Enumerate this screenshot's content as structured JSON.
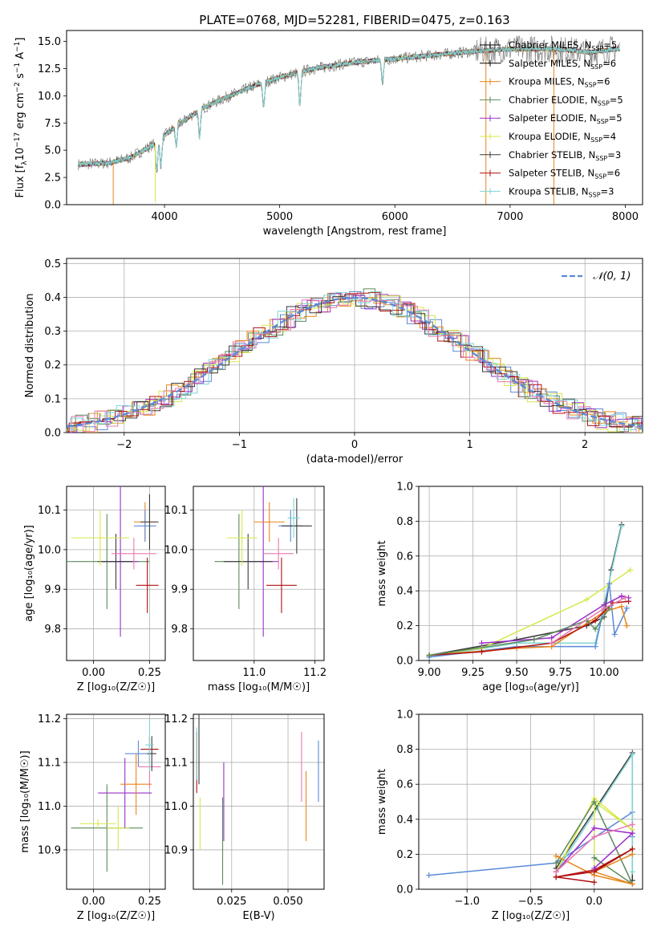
{
  "figure": {
    "top_title": "PLATE=0768, MJD=52281, FIBERID=0475, z=0.163"
  },
  "chart_data": [
    {
      "id": "spectrum",
      "type": "line",
      "title": "PLATE=0768, MJD=52281, FIBERID=0475, z=0.163",
      "xlabel": "wavelength [Angstrom, rest frame]",
      "ylabel_parts": {
        "pre": "Flux [f",
        "sub": "λ",
        "mid": "10",
        "sup1": "−17",
        "post1": " erg cm",
        "sup2": "−2",
        "post2": " s",
        "sup3": "−1",
        "post3": " A",
        "sup4": "−1",
        "post4": "]"
      },
      "xlim": [
        3150,
        8150
      ],
      "ylim": [
        0,
        16
      ],
      "xticks": [
        "4000",
        "5000",
        "6000",
        "7000",
        "8000"
      ],
      "xtick_values": [
        4000,
        5000,
        6000,
        7000,
        8000
      ],
      "yticks": [
        "0.0",
        "2.5",
        "5.0",
        "7.5",
        "10.0",
        "12.5",
        "15.0"
      ],
      "ytick_values": [
        0,
        2.5,
        5,
        7.5,
        10,
        12.5,
        15
      ],
      "continuum_points": [
        [
          3250,
          3.7
        ],
        [
          3500,
          3.8
        ],
        [
          3700,
          4.3
        ],
        [
          3900,
          5.5
        ],
        [
          4100,
          7.2
        ],
        [
          4300,
          8.7
        ],
        [
          4500,
          9.7
        ],
        [
          4800,
          11.0
        ],
        [
          5000,
          11.7
        ],
        [
          5300,
          12.5
        ],
        [
          5600,
          13.0
        ],
        [
          6000,
          13.4
        ],
        [
          6300,
          13.7
        ],
        [
          6700,
          14.1
        ],
        [
          7000,
          14.3
        ],
        [
          7400,
          14.3
        ],
        [
          7700,
          14.0
        ],
        [
          7900,
          14.3
        ]
      ],
      "absorption_lines": [
        [
          3934,
          0.45
        ],
        [
          3969,
          0.4
        ],
        [
          4102,
          0.25
        ],
        [
          4304,
          0.3
        ],
        [
          4861,
          0.2
        ],
        [
          5175,
          0.25
        ],
        [
          5893,
          0.15
        ]
      ],
      "spikes": [
        [
          3555,
          0.0
        ],
        [
          3920,
          0.2
        ],
        [
          6790,
          0.0
        ],
        [
          7380,
          0.0
        ]
      ],
      "legend": [
        {
          "pre": "Chabrier MILES, N",
          "sub": "SSP",
          "post": "=5",
          "color": "#000000"
        },
        {
          "pre": "Salpeter MILES, N",
          "sub": "SSP",
          "post": "=6",
          "color": "#000000"
        },
        {
          "pre": "Kroupa MILES, N",
          "sub": "SSP",
          "post": "=6",
          "color": "#e8861a"
        },
        {
          "pre": "Chabrier ELODIE, N",
          "sub": "SSP",
          "post": "=5",
          "color": "#5b8a5b"
        },
        {
          "pre": "Salpeter ELODIE, N",
          "sub": "SSP",
          "post": "=5",
          "color": "#9b30c8"
        },
        {
          "pre": "Kroupa ELODIE, N",
          "sub": "SSP",
          "post": "=4",
          "color": "#d7e84a"
        },
        {
          "pre": "Chabrier STELIB, N",
          "sub": "SSP",
          "post": "=3",
          "color": "#3a3a3a"
        },
        {
          "pre": "Salpeter STELIB, N",
          "sub": "SSP",
          "post": "=6",
          "color": "#b01010"
        },
        {
          "pre": "Kroupa STELIB, N",
          "sub": "SSP",
          "post": "=3",
          "color": "#7fd6d6"
        }
      ]
    },
    {
      "id": "residuals",
      "type": "histogram",
      "xlabel": "(data-model)/error",
      "ylabel": "Normed distribution",
      "xlim": [
        -2.5,
        2.5
      ],
      "ylim": [
        0,
        0.515
      ],
      "xticks": [
        "−2",
        "−1",
        "0",
        "1",
        "2"
      ],
      "xtick_values": [
        -2,
        -1,
        0,
        1,
        2
      ],
      "yticks": [
        "0.0",
        "0.1",
        "0.2",
        "0.3",
        "0.4",
        "0.5"
      ],
      "ytick_values": [
        0,
        0.1,
        0.2,
        0.3,
        0.4,
        0.5
      ],
      "legend": "𝒩(0, 1)",
      "gaussian_color": "#5b8ad8",
      "series_colors": [
        "#5b8ad8",
        "#e8861a",
        "#5b8a5b",
        "#9b30c8",
        "#d7e84a",
        "#3a3a3a",
        "#b01010",
        "#7fd6d6",
        "#e879b0"
      ]
    },
    {
      "id": "age-vs-Z",
      "type": "errorbar",
      "xlabel": "Z [log₁₀(Z/Z☉)]",
      "ylabel": "age  [log₁₀(age/yr)]",
      "xlim": [
        -0.12,
        0.32
      ],
      "ylim": [
        9.72,
        10.16
      ],
      "xticks": [
        "0.00",
        "0.25"
      ],
      "xtick_values": [
        0,
        0.25
      ],
      "yticks": [
        "9.8",
        "9.9",
        "10.0",
        "10.1"
      ],
      "ytick_values": [
        9.8,
        9.9,
        10.0,
        10.1
      ],
      "points": [
        {
          "x": 0.06,
          "xerr": 0.19,
          "y": 9.97,
          "yerr": 0.12,
          "c": "#5b8a5b"
        },
        {
          "x": 0.12,
          "xerr": 0.08,
          "y": 9.97,
          "yerr": 0.19,
          "c": "#9b30c8"
        },
        {
          "x": 0.1,
          "xerr": 0.08,
          "y": 9.97,
          "yerr": 0.07,
          "c": "#3a3a3a"
        },
        {
          "x": 0.03,
          "xerr": 0.13,
          "y": 10.03,
          "yerr": 0.07,
          "c": "#d7e84a"
        },
        {
          "x": 0.18,
          "xerr": 0.1,
          "y": 9.99,
          "yerr": 0.04,
          "c": "#e879b0"
        },
        {
          "x": 0.23,
          "xerr": 0.05,
          "y": 10.07,
          "yerr": 0.05,
          "c": "#e8861a"
        },
        {
          "x": 0.23,
          "xerr": 0.05,
          "y": 10.06,
          "yerr": 0.04,
          "c": "#5b8ad8"
        },
        {
          "x": 0.24,
          "xerr": 0.05,
          "y": 9.91,
          "yerr": 0.07,
          "c": "#b01010"
        },
        {
          "x": 0.25,
          "xerr": 0.04,
          "y": 10.07,
          "yerr": 0.07,
          "c": "#3a3a3a"
        }
      ]
    },
    {
      "id": "age-vs-mass",
      "type": "errorbar",
      "xlabel": "mass [log₁₀(M/M☉)]",
      "ylabel": "",
      "xlim": [
        10.8,
        11.23
      ],
      "ylim": [
        9.72,
        10.16
      ],
      "xticks": [
        "11.0",
        "11.2"
      ],
      "xtick_values": [
        11.0,
        11.2
      ],
      "yticks": [
        "9.8",
        "9.9",
        "10.0",
        "10.1"
      ],
      "ytick_values": [
        9.8,
        9.9,
        10.0,
        10.1
      ],
      "points": [
        {
          "x": 10.95,
          "xerr": 0.08,
          "y": 9.97,
          "yerr": 0.12,
          "c": "#5b8a5b"
        },
        {
          "x": 11.03,
          "xerr": 0.05,
          "y": 9.97,
          "yerr": 0.19,
          "c": "#9b30c8"
        },
        {
          "x": 10.98,
          "xerr": 0.08,
          "y": 9.97,
          "yerr": 0.07,
          "c": "#3a3a3a"
        },
        {
          "x": 10.96,
          "xerr": 0.05,
          "y": 10.03,
          "yerr": 0.07,
          "c": "#d7e84a"
        },
        {
          "x": 11.08,
          "xerr": 0.05,
          "y": 9.99,
          "yerr": 0.04,
          "c": "#e879b0"
        },
        {
          "x": 11.05,
          "xerr": 0.05,
          "y": 10.07,
          "yerr": 0.05,
          "c": "#e8861a"
        },
        {
          "x": 11.12,
          "xerr": 0.04,
          "y": 10.06,
          "yerr": 0.04,
          "c": "#5b8ad8"
        },
        {
          "x": 11.09,
          "xerr": 0.05,
          "y": 9.91,
          "yerr": 0.07,
          "c": "#b01010"
        },
        {
          "x": 11.14,
          "xerr": 0.05,
          "y": 10.06,
          "yerr": 0.07,
          "c": "#3a3a3a"
        },
        {
          "x": 11.13,
          "xerr": 0.02,
          "y": 10.08,
          "yerr": 0.05,
          "c": "#7fd6d6"
        }
      ]
    },
    {
      "id": "weight-vs-age",
      "type": "line",
      "xlabel": "age  [log₁₀(age/yr)]",
      "ylabel": "mass weight",
      "xlim": [
        8.94,
        10.22
      ],
      "ylim": [
        0,
        1
      ],
      "xticks": [
        "9.00",
        "9.25",
        "9.50",
        "9.75",
        "10.00"
      ],
      "xtick_values": [
        9.0,
        9.25,
        9.5,
        9.75,
        10.0
      ],
      "yticks": [
        "0.0",
        "0.2",
        "0.4",
        "0.6",
        "0.8",
        "1.0"
      ],
      "ytick_values": [
        0,
        0.2,
        0.4,
        0.6,
        0.8,
        1.0
      ],
      "series": [
        {
          "c": "#3a3a3a",
          "x": [
            9.0,
            9.5,
            9.9,
            10.0,
            10.04,
            10.1
          ],
          "y": [
            0.03,
            0.12,
            0.2,
            0.25,
            0.52,
            0.78
          ]
        },
        {
          "c": "#7fd6d6",
          "x": [
            9.0,
            9.5,
            9.95,
            10.1
          ],
          "y": [
            0.02,
            0.1,
            0.1,
            0.77
          ]
        },
        {
          "c": "#d7e84a",
          "x": [
            9.0,
            9.3,
            9.9,
            10.15
          ],
          "y": [
            0.03,
            0.07,
            0.35,
            0.52
          ]
        },
        {
          "c": "#5b8ad8",
          "x": [
            9.0,
            9.5,
            9.95,
            10.03,
            10.06,
            10.13
          ],
          "y": [
            0.02,
            0.08,
            0.08,
            0.44,
            0.15,
            0.3
          ]
        },
        {
          "c": "#e8861a",
          "x": [
            9.0,
            9.5,
            9.7,
            10.0,
            10.1,
            10.13
          ],
          "y": [
            0.03,
            0.07,
            0.08,
            0.28,
            0.31,
            0.2
          ]
        },
        {
          "c": "#b01010",
          "x": [
            9.0,
            9.3,
            9.7,
            9.95,
            10.05,
            10.14
          ],
          "y": [
            0.03,
            0.05,
            0.1,
            0.23,
            0.33,
            0.34
          ]
        },
        {
          "c": "#9b30c8",
          "x": [
            9.3,
            9.7,
            10.0,
            10.1,
            10.14
          ],
          "y": [
            0.1,
            0.13,
            0.32,
            0.37,
            0.36
          ]
        },
        {
          "c": "#5b8a5b",
          "x": [
            9.0,
            9.6,
            9.9,
            9.95,
            10.03
          ],
          "y": [
            0.03,
            0.12,
            0.23,
            0.18,
            0.3
          ]
        },
        {
          "c": "#e879b0",
          "x": [
            9.7,
            10.0,
            10.12
          ],
          "y": [
            0.1,
            0.3,
            0.36
          ]
        }
      ]
    },
    {
      "id": "mass-vs-Z",
      "type": "errorbar",
      "xlabel": "Z [log₁₀(Z/Z☉)]",
      "ylabel": "mass [log₁₀(M/M☉)]",
      "xlim": [
        -0.12,
        0.32
      ],
      "ylim": [
        10.81,
        11.21
      ],
      "xticks": [
        "0.00",
        "0.25"
      ],
      "xtick_values": [
        0,
        0.25
      ],
      "yticks": [
        "10.9",
        "11.0",
        "11.1",
        "11.2"
      ],
      "ytick_values": [
        10.9,
        11.0,
        11.1,
        11.2
      ],
      "points": [
        {
          "x": 0.06,
          "xerr": 0.16,
          "y": 10.95,
          "yerr": 0.1,
          "c": "#5b8a5b"
        },
        {
          "x": 0.11,
          "xerr": 0.05,
          "y": 10.95,
          "yerr": 0.05,
          "c": "#d7e84a"
        },
        {
          "x": 0.02,
          "xerr": 0.08,
          "y": 10.96,
          "yerr": 0.01,
          "c": "#d7e84a"
        },
        {
          "x": 0.14,
          "xerr": 0.12,
          "y": 11.03,
          "yerr": 0.08,
          "c": "#9b30c8"
        },
        {
          "x": 0.19,
          "xerr": 0.07,
          "y": 11.05,
          "yerr": 0.07,
          "c": "#e8861a"
        },
        {
          "x": 0.2,
          "xerr": 0.06,
          "y": 11.12,
          "yerr": 0.03,
          "c": "#5b8ad8"
        },
        {
          "x": 0.25,
          "xerr": 0.05,
          "y": 11.09,
          "yerr": 0.05,
          "c": "#e879b0"
        },
        {
          "x": 0.25,
          "xerr": 0.04,
          "y": 11.13,
          "yerr": 0.03,
          "c": "#b01010"
        },
        {
          "x": 0.26,
          "xerr": 0.02,
          "y": 11.12,
          "yerr": 0.04,
          "c": "#3a3a3a"
        },
        {
          "x": 0.25,
          "xerr": 0.02,
          "y": 11.14,
          "yerr": 0.06,
          "c": "#7fd6d6"
        }
      ]
    },
    {
      "id": "mass-vs-EBV",
      "type": "errorbar",
      "xlabel": "E(B-V)",
      "ylabel": "",
      "xlim": [
        0.008,
        0.066
      ],
      "ylim": [
        10.81,
        11.21
      ],
      "xticks": [
        "0.025",
        "0.050"
      ],
      "xtick_values": [
        0.025,
        0.05
      ],
      "yticks": [
        "10.9",
        "11.0",
        "11.1",
        "11.2"
      ],
      "ytick_values": [
        10.9,
        11.0,
        11.1,
        11.2
      ],
      "points": [
        {
          "x": 0.0105,
          "xerr": 0.0,
          "y": 11.13,
          "yerr": 0.08,
          "c": "#3a3a3a"
        },
        {
          "x": 0.0095,
          "xerr": 0.0,
          "y": 11.1,
          "yerr": 0.07,
          "c": "#b01010"
        },
        {
          "x": 0.0095,
          "xerr": 0.0,
          "y": 11.12,
          "yerr": 0.06,
          "c": "#7fd6d6"
        },
        {
          "x": 0.011,
          "xerr": 0.0,
          "y": 10.96,
          "yerr": 0.06,
          "c": "#d7e84a"
        },
        {
          "x": 0.0215,
          "xerr": 0.0,
          "y": 11.01,
          "yerr": 0.09,
          "c": "#9b30c8"
        },
        {
          "x": 0.021,
          "xerr": 0.0,
          "y": 10.92,
          "yerr": 0.1,
          "c": "#5b8a5b"
        },
        {
          "x": 0.056,
          "xerr": 0.0,
          "y": 11.09,
          "yerr": 0.08,
          "c": "#e879b0"
        },
        {
          "x": 0.058,
          "xerr": 0.0,
          "y": 11.0,
          "yerr": 0.08,
          "c": "#e8861a"
        },
        {
          "x": 0.0635,
          "xerr": 0.0,
          "y": 11.08,
          "yerr": 0.07,
          "c": "#5b8ad8"
        }
      ]
    },
    {
      "id": "weight-vs-Z",
      "type": "line",
      "xlabel": "Z [log₁₀(Z/Z☉)]",
      "ylabel": "mass weight",
      "xlim": [
        -1.38,
        0.38
      ],
      "ylim": [
        0,
        1
      ],
      "xticks": [
        "−1.0",
        "−0.5",
        "0.0"
      ],
      "xtick_values": [
        -1.0,
        -0.5,
        0.0
      ],
      "yticks": [
        "0.0",
        "0.2",
        "0.4",
        "0.6",
        "0.8",
        "1.0"
      ],
      "ytick_values": [
        0,
        0.2,
        0.4,
        0.6,
        0.8,
        1.0
      ],
      "series": [
        {
          "c": "#5b8ad8",
          "x": [
            -1.3,
            -0.3,
            0.3,
            0.3
          ],
          "y": [
            0.08,
            0.15,
            0.44,
            0.3
          ]
        },
        {
          "c": "#3a3a3a",
          "x": [
            -0.3,
            0.3,
            0.3
          ],
          "y": [
            0.12,
            0.78,
            0.05
          ]
        },
        {
          "c": "#7fd6d6",
          "x": [
            -0.3,
            0.3,
            0.3
          ],
          "y": [
            0.1,
            0.77,
            0.1
          ]
        },
        {
          "c": "#d7e84a",
          "x": [
            -0.3,
            0.0,
            0.3,
            0.0,
            0.0
          ],
          "y": [
            0.1,
            0.52,
            0.34,
            0.5,
            0.1
          ]
        },
        {
          "c": "#5b8a5b",
          "x": [
            -0.3,
            0.0,
            0.3,
            0.0
          ],
          "y": [
            0.15,
            0.5,
            0.03,
            0.18
          ]
        },
        {
          "c": "#e8861a",
          "x": [
            -0.3,
            0.0,
            0.3,
            0.0,
            0.3
          ],
          "y": [
            0.19,
            0.08,
            0.03,
            0.1,
            0.2
          ]
        },
        {
          "c": "#b01010",
          "x": [
            -0.3,
            0.0,
            0.3,
            0.0,
            -0.3,
            0.0
          ],
          "y": [
            0.07,
            0.11,
            0.23,
            0.1,
            0.07,
            0.04
          ]
        },
        {
          "c": "#9b30c8",
          "x": [
            -0.3,
            0.0,
            0.3,
            0.0
          ],
          "y": [
            0.1,
            0.35,
            0.32,
            0.12
          ]
        },
        {
          "c": "#e879b0",
          "x": [
            -0.3,
            0.0,
            0.3
          ],
          "y": [
            0.1,
            0.3,
            0.37
          ]
        }
      ]
    }
  ]
}
